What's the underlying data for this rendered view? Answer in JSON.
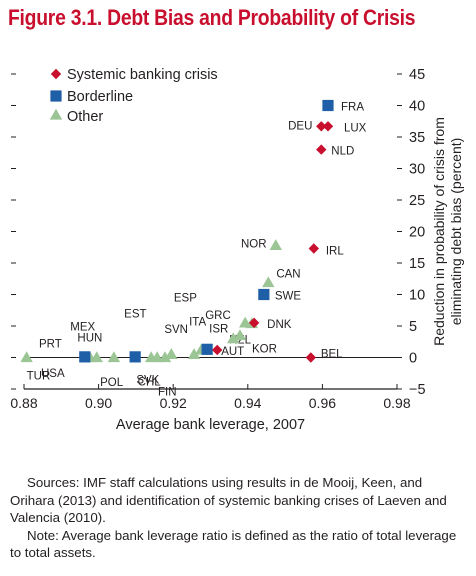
{
  "figure": {
    "number": "Figure 3.1.",
    "title": "Debt Bias and Probability of Crisis"
  },
  "footnotes": {
    "sources": "Sources: IMF staff calculations using results in de Mooij, Keen, and Orihara (2013) and identification of systemic banking crises of Laeven and Valencia (2010).",
    "note": "Note: Average bank leverage ratio is defined as the ratio of total leverage to total assets."
  },
  "colors": {
    "systemic": "#c8102e",
    "borderline": "#1f5fa8",
    "other": "#9bc594",
    "title": "#c8102e"
  },
  "chart_data": {
    "type": "scatter",
    "xlabel": "Average bank leverage, 2007",
    "ylabel_lines": [
      "Reduction in probability of crisis from",
      "eliminating debt bias (percent)"
    ],
    "xlim": [
      0.88,
      0.98
    ],
    "ylim": [
      -5,
      45
    ],
    "xticks": [
      0.88,
      0.9,
      0.92,
      0.94,
      0.96,
      0.98
    ],
    "xtick_labels": [
      "0.88",
      "0.90",
      "0.92",
      "0.94",
      "0.96",
      "0.98"
    ],
    "yticks": [
      -5,
      0,
      5,
      10,
      15,
      20,
      25,
      30,
      35,
      40,
      45
    ],
    "ytick_labels": [
      "−5",
      "0",
      "5",
      "10",
      "15",
      "20",
      "25",
      "30",
      "35",
      "40",
      "45"
    ],
    "zero_line": true,
    "grid": false,
    "legend_position": "top-left",
    "series": [
      {
        "name": "Systemic banking crisis",
        "marker": "diamond",
        "color": "#c8102e",
        "points": [
          {
            "label": "DEU",
            "x": 0.9597,
            "y": 36.7
          },
          {
            "label": "LUX",
            "x": 0.9615,
            "y": 36.7
          },
          {
            "label": "NLD",
            "x": 0.9597,
            "y": 33.0
          },
          {
            "label": "IRL",
            "x": 0.9577,
            "y": 17.3
          },
          {
            "label": "DNK",
            "x": 0.9417,
            "y": 5.5
          },
          {
            "label": "AUT",
            "x": 0.9318,
            "y": 1.2
          },
          {
            "label": "BEL",
            "x": 0.9569,
            "y": 0.0
          }
        ]
      },
      {
        "name": "Borderline",
        "marker": "square",
        "color": "#1f5fa8",
        "points": [
          {
            "label": "FRA",
            "x": 0.9615,
            "y": 40.0
          },
          {
            "label": "SWE",
            "x": 0.9443,
            "y": 10.0
          },
          {
            "label": "ISR",
            "x": 0.9291,
            "y": 1.3
          },
          {
            "label": "USA",
            "x": 0.8963,
            "y": 0.1
          },
          {
            "label": "POL",
            "x": 0.9098,
            "y": 0.1
          }
        ]
      },
      {
        "name": "Other",
        "marker": "triangle",
        "color": "#9bc594",
        "points": [
          {
            "label": "NOR",
            "x": 0.9475,
            "y": 17.8
          },
          {
            "label": "CAN",
            "x": 0.9455,
            "y": 11.9
          },
          {
            "label": "GRC",
            "x": 0.9393,
            "y": 5.5
          },
          {
            "label": "ESP",
            "x": 0.9411,
            "y": 5.4
          },
          {
            "label": "NZL",
            "x": 0.9361,
            "y": 3.0
          },
          {
            "label": "KOR",
            "x": 0.9379,
            "y": 3.5
          },
          {
            "label": "SVN",
            "x": 0.9275,
            "y": 1.2
          },
          {
            "label": "ITA",
            "x": 0.9256,
            "y": 0.5
          },
          {
            "label": "SVK",
            "x": 0.9195,
            "y": 0.5
          },
          {
            "label": "FIN",
            "x": 0.9178,
            "y": 0.0
          },
          {
            "label": "CHL",
            "x": 0.9141,
            "y": 0.0
          },
          {
            "label": "EST",
            "x": 0.9157,
            "y": 0.0
          },
          {
            "label": "HUN",
            "x": 0.9041,
            "y": 0.0
          },
          {
            "label": "MEX",
            "x": 0.8995,
            "y": 0.0
          },
          {
            "label": "PRT",
            "x": 0.8977,
            "y": 0.0
          },
          {
            "label": "TUR",
            "x": 0.8807,
            "y": 0.0
          }
        ]
      }
    ]
  }
}
